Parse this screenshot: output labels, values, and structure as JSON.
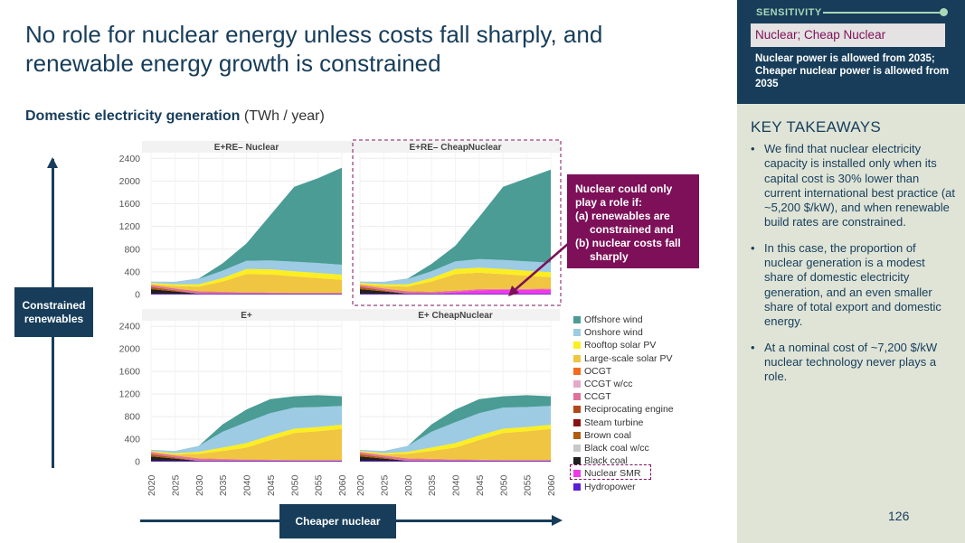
{
  "title": "No role for nuclear energy unless costs fall sharply, and renewable energy growth is constrained",
  "subtitle": {
    "bold": "Domestic electricity generation",
    "unit": "(TWh / year)"
  },
  "axis_labels": {
    "vertical": "Constrained renewables",
    "horizontal": "Cheaper nuclear"
  },
  "callout": {
    "line1": "Nuclear could only",
    "line2": "play a role if:",
    "line3": "(a)  renewables are",
    "line4": "constrained and",
    "line5": "(b)  nuclear costs fall",
    "line6": "sharply"
  },
  "sensitivity": {
    "label": "SENSITIVITY",
    "name": "Nuclear; Cheap Nuclear",
    "description": "Nuclear power is allowed from 2035; Cheaper nuclear power is allowed from 2035"
  },
  "key_takeaways": {
    "title": "KEY TAKEAWAYS",
    "items": [
      "We find that nuclear electricity capacity is installed only when its capital cost is 30% lower than current international best practice (at ~5,200 $/kW), and when renewable build rates are constrained.",
      "In this case, the proportion of nuclear generation is a modest share of domestic electricity generation, and an even smaller share of total export and domestic energy.",
      "At a nominal cost of ~7,200 $/kW nuclear technology never plays a role."
    ]
  },
  "page_number": "126",
  "colors": {
    "navy": "#173d5a",
    "callout": "#7d1058",
    "panel_bg": "#dfe4d7"
  },
  "chart_data": {
    "type": "area",
    "stacked": true,
    "years": [
      "2020",
      "2025",
      "2030",
      "2035",
      "2040",
      "2045",
      "2050",
      "2055",
      "2060"
    ],
    "y_ticks": [
      "0",
      "400",
      "800",
      "1200",
      "1600",
      "2000",
      "2400"
    ],
    "ylim": [
      0,
      2500
    ],
    "grid": true,
    "legend_position": "right",
    "legend": [
      {
        "name": "Offshore wind",
        "color": "#4a9c95"
      },
      {
        "name": "Onshore wind",
        "color": "#9ccbe3"
      },
      {
        "name": "Rooftop solar PV",
        "color": "#fcee21"
      },
      {
        "name": "Large-scale solar PV",
        "color": "#f0c541"
      },
      {
        "name": "OCGT",
        "color": "#f36b21"
      },
      {
        "name": "CCGT w/cc",
        "color": "#e5a8c8"
      },
      {
        "name": "CCGT",
        "color": "#e0709c"
      },
      {
        "name": "Reciprocating engine",
        "color": "#b5451b"
      },
      {
        "name": "Steam turbine",
        "color": "#8b1111"
      },
      {
        "name": "Brown coal",
        "color": "#b15c10"
      },
      {
        "name": "Black coal w/cc",
        "color": "#c8c8c8"
      },
      {
        "name": "Black coal",
        "color": "#231f20"
      },
      {
        "name": "Nuclear SMR",
        "color": "#ee3ae8"
      },
      {
        "name": "Hydropower",
        "color": "#5b1fd6"
      }
    ],
    "panels": [
      {
        "title": "E+RE– Nuclear",
        "series": [
          {
            "name": "Hydropower",
            "values": [
              15,
              15,
              15,
              15,
              15,
              15,
              15,
              15,
              15
            ]
          },
          {
            "name": "Nuclear SMR",
            "values": [
              0,
              0,
              0,
              0,
              0,
              0,
              0,
              0,
              0
            ]
          },
          {
            "name": "Black coal",
            "values": [
              80,
              40,
              0,
              0,
              0,
              0,
              0,
              0,
              0
            ]
          },
          {
            "name": "Black coal w/cc",
            "values": [
              0,
              0,
              0,
              0,
              0,
              0,
              0,
              0,
              0
            ]
          },
          {
            "name": "Brown coal",
            "values": [
              40,
              20,
              0,
              0,
              0,
              0,
              0,
              0,
              0
            ]
          },
          {
            "name": "Steam turbine",
            "values": [
              0,
              0,
              0,
              0,
              0,
              0,
              0,
              0,
              0
            ]
          },
          {
            "name": "Reciprocating engine",
            "values": [
              0,
              0,
              0,
              0,
              0,
              0,
              0,
              0,
              0
            ]
          },
          {
            "name": "CCGT",
            "values": [
              30,
              30,
              40,
              30,
              20,
              15,
              10,
              10,
              10
            ]
          },
          {
            "name": "CCGT w/cc",
            "values": [
              0,
              0,
              0,
              0,
              0,
              0,
              0,
              0,
              0
            ]
          },
          {
            "name": "OCGT",
            "values": [
              5,
              5,
              5,
              5,
              5,
              5,
              5,
              5,
              5
            ]
          },
          {
            "name": "Large-scale solar PV",
            "values": [
              15,
              40,
              80,
              180,
              320,
              320,
              290,
              260,
              230
            ]
          },
          {
            "name": "Rooftop solar PV",
            "values": [
              20,
              30,
              40,
              60,
              90,
              90,
              90,
              90,
              90
            ]
          },
          {
            "name": "Onshore wind",
            "values": [
              25,
              45,
              95,
              130,
              145,
              155,
              170,
              175,
              175
            ]
          },
          {
            "name": "Offshore wind",
            "values": [
              0,
              0,
              5,
              130,
              305,
              800,
              1320,
              1495,
              1710
            ]
          }
        ]
      },
      {
        "title": "E+RE– CheapNuclear",
        "series": [
          {
            "name": "Hydropower",
            "values": [
              15,
              15,
              15,
              15,
              15,
              15,
              15,
              15,
              15
            ]
          },
          {
            "name": "Nuclear SMR",
            "values": [
              0,
              0,
              0,
              0,
              30,
              60,
              70,
              70,
              75
            ]
          },
          {
            "name": "Black coal",
            "values": [
              80,
              40,
              0,
              0,
              0,
              0,
              0,
              0,
              0
            ]
          },
          {
            "name": "Black coal w/cc",
            "values": [
              0,
              0,
              0,
              0,
              0,
              0,
              0,
              0,
              0
            ]
          },
          {
            "name": "Brown coal",
            "values": [
              40,
              20,
              0,
              0,
              0,
              0,
              0,
              0,
              0
            ]
          },
          {
            "name": "Steam turbine",
            "values": [
              0,
              0,
              0,
              0,
              0,
              0,
              0,
              0,
              0
            ]
          },
          {
            "name": "Reciprocating engine",
            "values": [
              0,
              0,
              0,
              0,
              0,
              0,
              0,
              0,
              0
            ]
          },
          {
            "name": "CCGT",
            "values": [
              30,
              30,
              40,
              30,
              20,
              15,
              10,
              10,
              10
            ]
          },
          {
            "name": "CCGT w/cc",
            "values": [
              0,
              0,
              0,
              0,
              0,
              0,
              0,
              0,
              0
            ]
          },
          {
            "name": "OCGT",
            "values": [
              5,
              5,
              5,
              5,
              5,
              5,
              5,
              5,
              5
            ]
          },
          {
            "name": "Large-scale solar PV",
            "values": [
              15,
              40,
              80,
              180,
              290,
              290,
              260,
              230,
              200
            ]
          },
          {
            "name": "Rooftop solar PV",
            "values": [
              20,
              30,
              40,
              60,
              90,
              90,
              90,
              90,
              90
            ]
          },
          {
            "name": "Onshore wind",
            "values": [
              25,
              45,
              95,
              120,
              135,
              150,
              160,
              165,
              165
            ]
          },
          {
            "name": "Offshore wind",
            "values": [
              0,
              0,
              5,
              130,
              275,
              745,
              1290,
              1465,
              1640
            ]
          }
        ]
      },
      {
        "title": "E+",
        "series": [
          {
            "name": "Hydropower",
            "values": [
              15,
              15,
              15,
              15,
              15,
              15,
              15,
              15,
              15
            ]
          },
          {
            "name": "Nuclear SMR",
            "values": [
              0,
              0,
              0,
              0,
              0,
              0,
              0,
              0,
              0
            ]
          },
          {
            "name": "Black coal",
            "values": [
              80,
              40,
              0,
              0,
              0,
              0,
              0,
              0,
              0
            ]
          },
          {
            "name": "Black coal w/cc",
            "values": [
              0,
              0,
              0,
              0,
              0,
              0,
              0,
              0,
              0
            ]
          },
          {
            "name": "Brown coal",
            "values": [
              40,
              20,
              0,
              0,
              0,
              0,
              0,
              0,
              0
            ]
          },
          {
            "name": "Steam turbine",
            "values": [
              0,
              0,
              0,
              0,
              0,
              0,
              0,
              0,
              0
            ]
          },
          {
            "name": "Reciprocating engine",
            "values": [
              0,
              0,
              0,
              0,
              0,
              0,
              0,
              0,
              0
            ]
          },
          {
            "name": "CCGT",
            "values": [
              30,
              30,
              40,
              30,
              20,
              15,
              10,
              10,
              10
            ]
          },
          {
            "name": "CCGT w/cc",
            "values": [
              0,
              0,
              0,
              0,
              0,
              0,
              0,
              0,
              0
            ]
          },
          {
            "name": "OCGT",
            "values": [
              5,
              5,
              5,
              5,
              5,
              5,
              5,
              5,
              5
            ]
          },
          {
            "name": "Large-scale solar PV",
            "values": [
              10,
              20,
              80,
              140,
              210,
              350,
              480,
              510,
              550
            ]
          },
          {
            "name": "Rooftop solar PV",
            "values": [
              10,
              20,
              35,
              60,
              80,
              80,
              75,
              75,
              75
            ]
          },
          {
            "name": "Onshore wind",
            "values": [
              20,
              40,
              105,
              280,
              370,
              395,
              375,
              355,
              335
            ]
          },
          {
            "name": "Offshore wind",
            "values": [
              0,
              0,
              0,
              130,
              225,
              250,
              200,
              210,
              170
            ]
          }
        ]
      },
      {
        "title": "E+ CheapNuclear",
        "series": [
          {
            "name": "Hydropower",
            "values": [
              15,
              15,
              15,
              15,
              15,
              15,
              15,
              15,
              15
            ]
          },
          {
            "name": "Nuclear SMR",
            "values": [
              0,
              0,
              0,
              0,
              0,
              0,
              0,
              0,
              0
            ]
          },
          {
            "name": "Black coal",
            "values": [
              80,
              40,
              0,
              0,
              0,
              0,
              0,
              0,
              0
            ]
          },
          {
            "name": "Black coal w/cc",
            "values": [
              0,
              0,
              0,
              0,
              0,
              0,
              0,
              0,
              0
            ]
          },
          {
            "name": "Brown coal",
            "values": [
              40,
              20,
              0,
              0,
              0,
              0,
              0,
              0,
              0
            ]
          },
          {
            "name": "Steam turbine",
            "values": [
              0,
              0,
              0,
              0,
              0,
              0,
              0,
              0,
              0
            ]
          },
          {
            "name": "Reciprocating engine",
            "values": [
              0,
              0,
              0,
              0,
              0,
              0,
              0,
              0,
              0
            ]
          },
          {
            "name": "CCGT",
            "values": [
              30,
              30,
              40,
              30,
              20,
              15,
              10,
              10,
              10
            ]
          },
          {
            "name": "CCGT w/cc",
            "values": [
              0,
              0,
              0,
              0,
              0,
              0,
              0,
              0,
              0
            ]
          },
          {
            "name": "OCGT",
            "values": [
              5,
              5,
              5,
              5,
              5,
              5,
              5,
              5,
              5
            ]
          },
          {
            "name": "Large-scale solar PV",
            "values": [
              10,
              20,
              80,
              140,
              210,
              350,
              480,
              510,
              550
            ]
          },
          {
            "name": "Rooftop solar PV",
            "values": [
              10,
              20,
              35,
              60,
              80,
              80,
              75,
              75,
              75
            ]
          },
          {
            "name": "Onshore wind",
            "values": [
              20,
              40,
              105,
              280,
              370,
              395,
              375,
              355,
              335
            ]
          },
          {
            "name": "Offshore wind",
            "values": [
              0,
              0,
              0,
              130,
              225,
              250,
              200,
              210,
              170
            ]
          }
        ]
      }
    ]
  }
}
